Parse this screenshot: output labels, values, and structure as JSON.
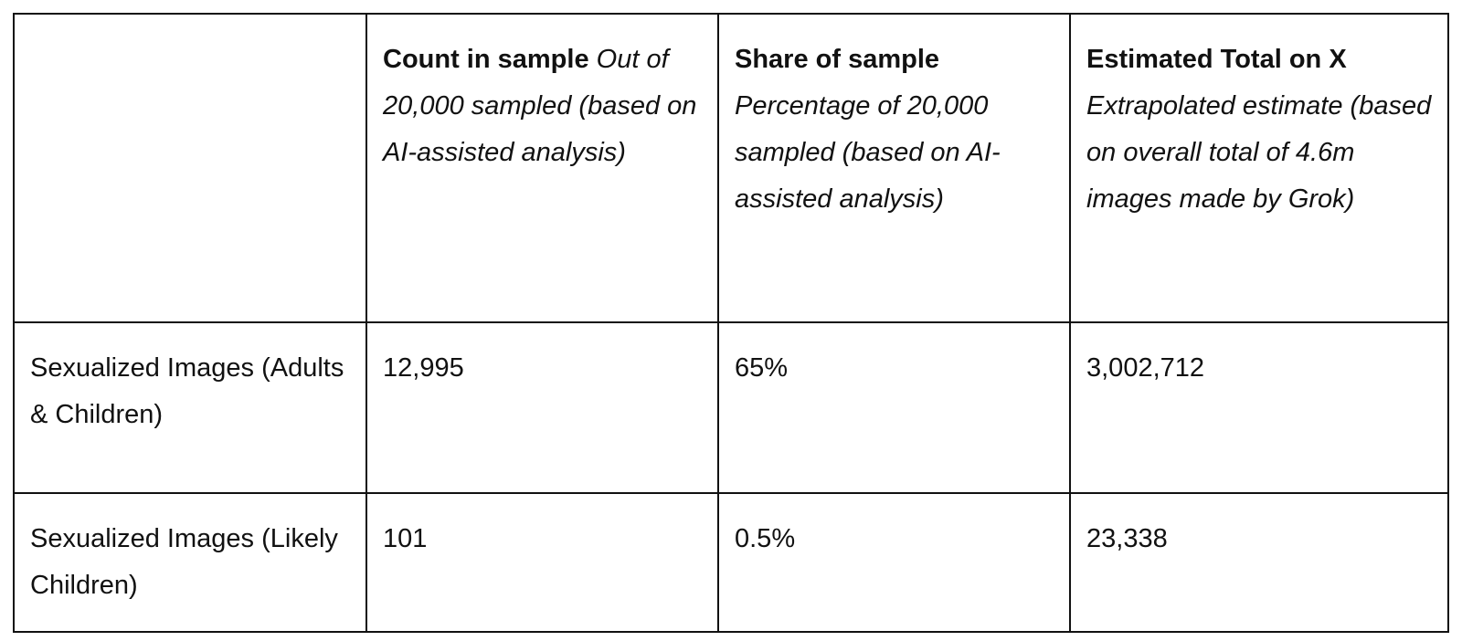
{
  "table": {
    "header": {
      "corner": "",
      "columns": [
        {
          "title": "Count in sample",
          "subtitle": "Out of 20,000 sampled (based on AI-assisted analysis)"
        },
        {
          "title": "Share of sample",
          "subtitle": "Percentage of 20,000 sampled (based on AI-assisted analysis)"
        },
        {
          "title": "Estimated Total on X",
          "subtitle": "Extrapolated estimate (based on overall total of 4.6m images made by Grok)"
        }
      ]
    },
    "rows": [
      {
        "label": "Sexualized Images (Adults & Children)",
        "count": "12,995",
        "share": "65%",
        "estimate": "3,002,712"
      },
      {
        "label": "Sexualized Images (Likely Children)",
        "count": "101",
        "share": "0.5%",
        "estimate": "23,338"
      }
    ]
  }
}
